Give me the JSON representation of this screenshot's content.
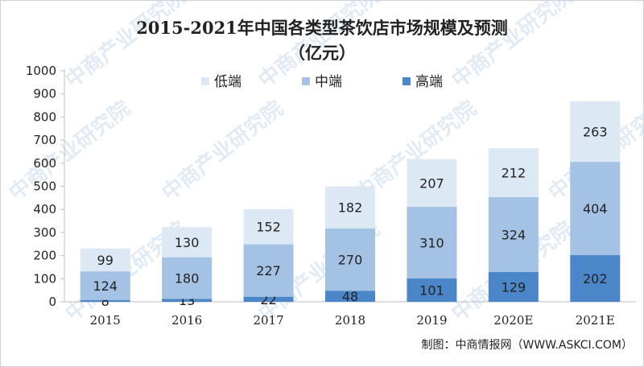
{
  "chart_data": {
    "type": "bar",
    "stacked": true,
    "title": "2015-2021年中国各类型茶饮店市场规模及预测",
    "subtitle": "（亿元）",
    "categories": [
      "2015",
      "2016",
      "2017",
      "2018",
      "2019",
      "2020E",
      "2021E"
    ],
    "series": [
      {
        "name": "高端",
        "values": [
          8,
          13,
          22,
          48,
          101,
          129,
          202
        ],
        "color": "#4a86c8"
      },
      {
        "name": "中端",
        "values": [
          124,
          180,
          227,
          270,
          310,
          324,
          404
        ],
        "color": "#a4c2e4"
      },
      {
        "name": "低端",
        "values": [
          99,
          130,
          152,
          182,
          207,
          212,
          263
        ],
        "color": "#dde8f5"
      }
    ],
    "legend_order": [
      "低端",
      "中端",
      "高端"
    ],
    "legend_position": "top",
    "ylim": [
      0,
      1000
    ],
    "yticks": [
      0,
      100,
      200,
      300,
      400,
      500,
      600,
      700,
      800,
      900,
      1000
    ],
    "grid": false
  },
  "source_text": "制图：中商情报网（WWW.ASKCI.COM）",
  "watermark_text": "中商产业研究院"
}
